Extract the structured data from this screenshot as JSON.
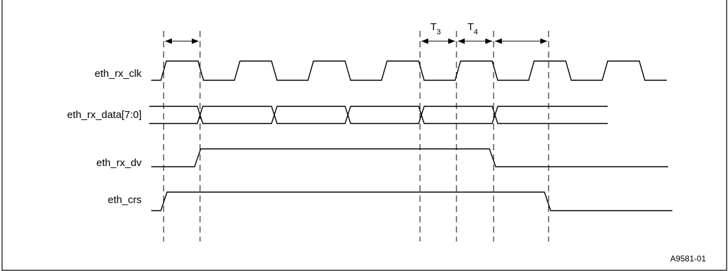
{
  "diagram": {
    "signals": [
      {
        "name": "eth_rx_clk"
      },
      {
        "name": "eth_rx_data[7:0]"
      },
      {
        "name": "eth_rx_dv"
      },
      {
        "name": "eth_crs"
      }
    ],
    "timing_labels": [
      {
        "main": "T",
        "sub": "3"
      },
      {
        "main": "T",
        "sub": "4"
      }
    ],
    "figure_id": "A9581-01"
  }
}
